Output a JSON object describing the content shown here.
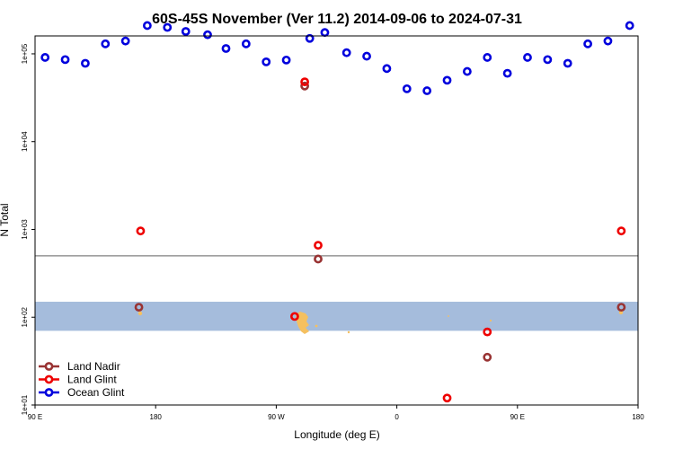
{
  "chart_data": {
    "type": "scatter",
    "title": "60S-45S November (Ver 11.2)   2014-09-06 to 2024-07-31",
    "xlabel": "Longitude (deg E)",
    "ylabel": "N Total",
    "x_tick_labels": [
      "90 E",
      "180",
      "90 W",
      "0",
      "90 E",
      "180"
    ],
    "y_tick_labels": [
      "1e+01",
      "1e+02",
      "1e+03",
      "1e+04",
      "1e+05"
    ],
    "y_scale": "log",
    "ylim": [
      10,
      160000
    ],
    "xlim": [
      0,
      360
    ],
    "reference_line": {
      "y": 500,
      "color": "#808080"
    },
    "shaded_band": {
      "from": 70,
      "to": 150,
      "color": "#a5bcdc"
    },
    "legend": {
      "position": "bottom-left"
    },
    "series": [
      {
        "name": "Land Nadir",
        "color": "#993333",
        "points": [
          [
            62,
            130
          ],
          [
            161,
            43000
          ],
          [
            169,
            460
          ],
          [
            270,
            35
          ],
          [
            350,
            130
          ]
        ]
      },
      {
        "name": "Land Glint",
        "color": "#ee0000",
        "points": [
          [
            63,
            960
          ],
          [
            155,
            102
          ],
          [
            161,
            48000
          ],
          [
            169,
            660
          ],
          [
            246,
            12
          ],
          [
            270,
            68
          ],
          [
            350,
            960
          ]
        ]
      },
      {
        "name": "Ocean Glint",
        "color": "#0000dd",
        "points": [
          [
            6,
            91000
          ],
          [
            18,
            86000
          ],
          [
            30,
            78000
          ],
          [
            42,
            130000
          ],
          [
            54,
            140000
          ],
          [
            67,
            210000
          ],
          [
            79,
            200000
          ],
          [
            90,
            180000
          ],
          [
            103,
            165000
          ],
          [
            114,
            115000
          ],
          [
            126,
            130000
          ],
          [
            138,
            81000
          ],
          [
            150,
            85000
          ],
          [
            164,
            150000
          ],
          [
            173,
            175000
          ],
          [
            186,
            103000
          ],
          [
            198,
            94000
          ],
          [
            210,
            68000
          ],
          [
            222,
            40000
          ],
          [
            234,
            38000
          ],
          [
            246,
            50000
          ],
          [
            258,
            63000
          ],
          [
            270,
            91000
          ],
          [
            282,
            60000
          ],
          [
            294,
            91000
          ],
          [
            306,
            86000
          ],
          [
            318,
            78000
          ],
          [
            330,
            130000
          ],
          [
            342,
            140000
          ],
          [
            355,
            210000
          ]
        ]
      }
    ]
  }
}
